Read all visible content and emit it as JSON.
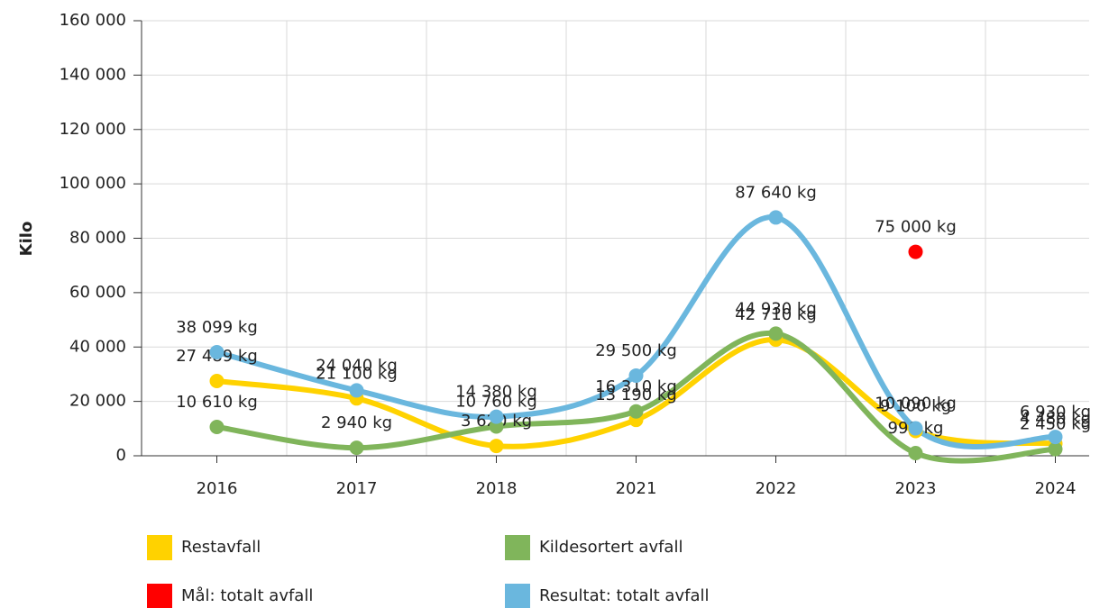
{
  "chart_data": {
    "type": "line",
    "y_label": "Kilo",
    "categories": [
      "2016",
      "2017",
      "2018",
      "2021",
      "2022",
      "2023",
      "2024"
    ],
    "ylim": [
      0,
      160000
    ],
    "yticks": [
      0,
      {
        "value": 20000,
        "label": "20 000"
      },
      {
        "value": 40000,
        "label": "40 000"
      },
      {
        "value": 60000,
        "label": "60 000"
      },
      {
        "value": 80000,
        "label": "80 000"
      },
      {
        "value": 100000,
        "label": "100 000"
      },
      {
        "value": 120000,
        "label": "120 000"
      },
      {
        "value": 140000,
        "label": "140 000"
      },
      {
        "value": 160000,
        "label": "160 000"
      }
    ],
    "grid": true,
    "series": [
      {
        "name": "Restavfall",
        "color": "#ffd200",
        "values": [
          27489,
          21100,
          3620,
          13190,
          42710,
          9100,
          4480
        ],
        "value_labels": [
          "27 489 kg",
          "21 100 kg",
          "3 620 kg",
          "13 190 kg",
          "42 710 kg",
          "9 100 kg",
          "4 480 kg"
        ]
      },
      {
        "name": "Kildesortert avfall",
        "color": "#80b55b",
        "values": [
          10610,
          2940,
          10760,
          16310,
          44930,
          990,
          2450
        ],
        "value_labels": [
          "10 610 kg",
          "2 940 kg",
          "10 760 kg",
          "16 310 kg",
          "44 930 kg",
          "990 kg",
          "2 450 kg"
        ]
      },
      {
        "name": "Mål: totalt avfall",
        "color": "#ff0000",
        "type": "scatter",
        "values": [
          null,
          null,
          null,
          null,
          null,
          75000,
          null
        ],
        "value_labels": [
          null,
          null,
          null,
          null,
          null,
          "75 000 kg",
          null
        ]
      },
      {
        "name": "Resultat: totalt avfall",
        "color": "#6ab7de",
        "values": [
          38099,
          24040,
          14380,
          29500,
          87640,
          10090,
          6930
        ],
        "value_labels": [
          "38 099 kg",
          "24 040 kg",
          "14 380 kg",
          "29 500 kg",
          "87 640 kg",
          "10 090 kg",
          "6 930 kg"
        ]
      }
    ]
  }
}
